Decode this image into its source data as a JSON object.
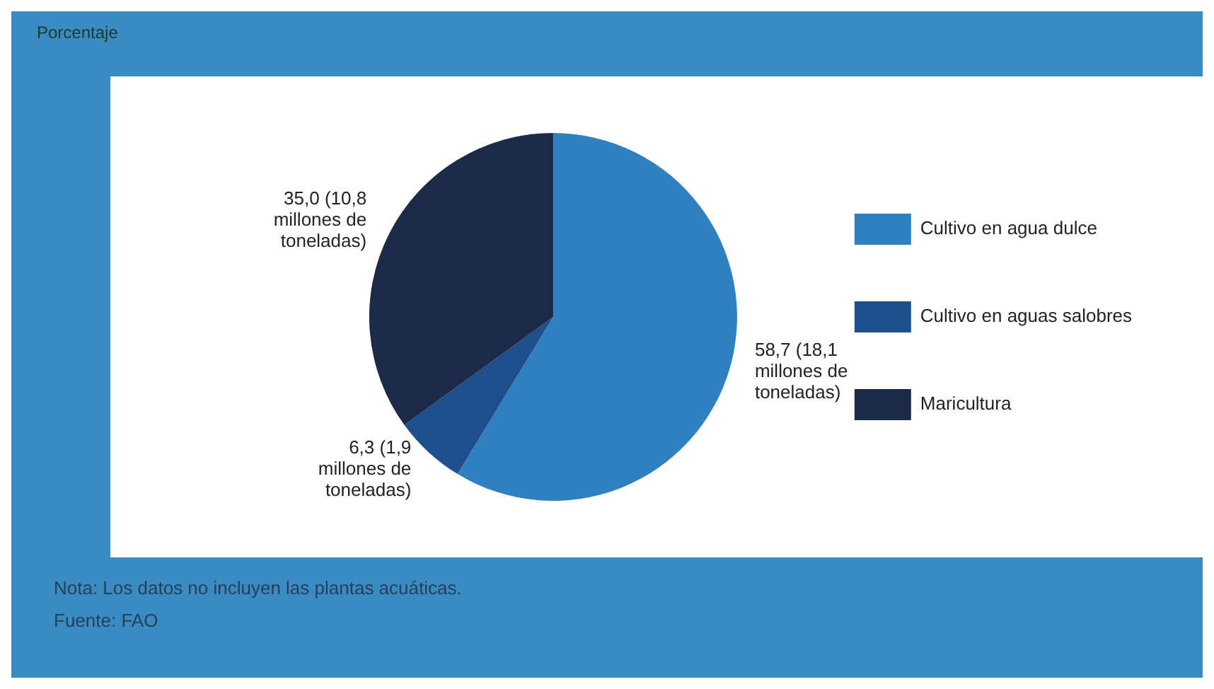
{
  "chart_data": {
    "type": "pie",
    "title": "Porcentaje",
    "categories": [
      "Cultivo en agua dulce",
      "Cultivo en aguas salobres",
      "Maricultura"
    ],
    "values": [
      58.7,
      6.3,
      35.0
    ],
    "colors": [
      "#2f80c0",
      "#1f4e8c",
      "#1c2a48"
    ],
    "value_labels": [
      "58,7 (18,1 millones de toneladas)",
      "6,3 (1,9 millones de toneladas)",
      "35,0 (10,8 millones de toneladas)"
    ],
    "legend": "right",
    "annotations": [
      "Nota: Los datos no incluyen las plantas acuáticas.",
      "Fuente: FAO"
    ]
  }
}
